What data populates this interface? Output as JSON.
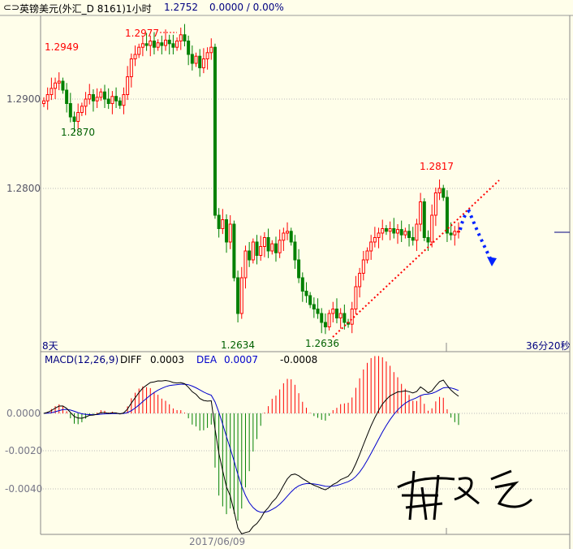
{
  "header": {
    "icon": "link-icon",
    "symbol": "英镑美元(外汇_D 8161)1小时",
    "price": "1.2752",
    "change": "0.0000 / 0.00%"
  },
  "price_panel": {
    "left_label": "8天",
    "right_label": "36分20秒",
    "y_ticks": [
      "1.2900",
      "1.2800"
    ],
    "annotations": {
      "high1": "1.2949",
      "low1": "1.2870",
      "high2": "1.2977",
      "high3": "1.2817",
      "low2": "1.2634",
      "low3": "1.2636"
    }
  },
  "macd_panel": {
    "title": "MACD(12,26,9)",
    "diff_label": "DIFF",
    "diff_value": "0.0003",
    "dea_label": "DEA",
    "dea_value": "0.0007",
    "macd_value": "-0.0008",
    "y_ticks": [
      "0.0000",
      "-0.0020",
      "-0.0040"
    ],
    "date_label": "2017/06/09"
  },
  "colors": {
    "background": "#fffeea",
    "up": "#ff0000",
    "down": "#008000",
    "dea": "#0000cc",
    "diff": "#000000",
    "trendline": "#ff0000",
    "arrow": "#0022ff"
  },
  "chart_data": {
    "type": "candlestick",
    "interval": "1 hour",
    "ylim": [
      1.2625,
      1.299
    ],
    "closes": [
      1.2898,
      1.2905,
      1.2912,
      1.2918,
      1.292,
      1.291,
      1.2895,
      1.288,
      1.2875,
      1.2885,
      1.2892,
      1.29,
      1.2905,
      1.2898,
      1.2902,
      1.2908,
      1.29,
      1.2895,
      1.2903,
      1.2898,
      1.2893,
      1.2905,
      1.2925,
      1.2945,
      1.295,
      1.2958,
      1.2962,
      1.296,
      1.2965,
      1.2958,
      1.2963,
      1.296,
      1.2966,
      1.2962,
      1.2958,
      1.2965,
      1.2972,
      1.2965,
      1.295,
      1.294,
      1.2948,
      1.2935,
      1.2945,
      1.2952,
      1.2958,
      1.277,
      1.2755,
      1.2765,
      1.274,
      1.276,
      1.27,
      1.266,
      1.27,
      1.273,
      1.272,
      1.274,
      1.2725,
      1.2735,
      1.2745,
      1.273,
      1.2738,
      1.2728,
      1.2742,
      1.275,
      1.2752,
      1.274,
      1.272,
      1.27,
      1.2685,
      1.268,
      1.267,
      1.2665,
      1.266,
      1.265,
      1.2645,
      1.266,
      1.2665,
      1.2655,
      1.266,
      1.265,
      1.2648,
      1.2665,
      1.269,
      1.2705,
      1.272,
      1.273,
      1.274,
      1.2745,
      1.275,
      1.2755,
      1.2752,
      1.2755,
      1.275,
      1.2754,
      1.2748,
      1.2752,
      1.2745,
      1.2742,
      1.276,
      1.2785,
      1.2745,
      1.274,
      1.277,
      1.2795,
      1.28,
      1.279,
      1.275,
      1.2748,
      1.2752,
      1.2752
    ]
  }
}
